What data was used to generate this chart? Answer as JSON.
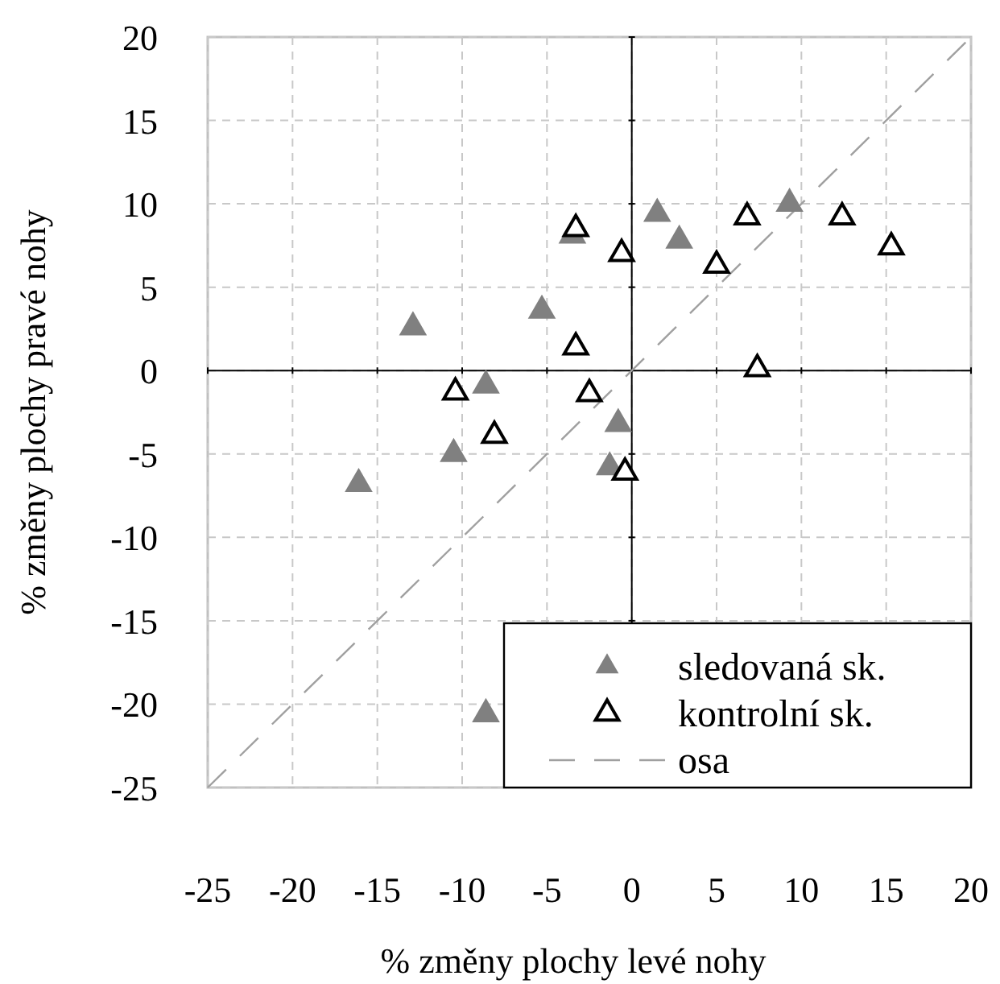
{
  "chart_data": {
    "type": "scatter",
    "xlabel": "% změny plochy levé nohy",
    "ylabel": "% změny plochy pravé nohy",
    "xlim": [
      -25,
      20
    ],
    "ylim": [
      -25,
      20
    ],
    "xticks": [
      -25,
      -20,
      -15,
      -10,
      -5,
      0,
      5,
      10,
      15,
      20
    ],
    "yticks": [
      -25,
      -20,
      -15,
      -10,
      -5,
      0,
      5,
      10,
      15,
      20
    ],
    "grid": true,
    "legend": "bottom right",
    "marker": "triangle",
    "series": [
      {
        "name": "sledovaná sk.",
        "color": "#808080",
        "x": [
          -12.9,
          -5.3,
          -3.5,
          1.5,
          2.8,
          9.3,
          -8.6,
          -0.8,
          -10.5,
          -1.3,
          -16.1,
          -8.6
        ],
        "values": [
          2.6,
          3.6,
          8.1,
          9.4,
          7.8,
          10.0,
          -0.9,
          -3.2,
          -5.0,
          -5.8,
          -6.8,
          -20.6
        ]
      },
      {
        "name": "kontrolní sk.",
        "color": "#000000",
        "x": [
          -3.3,
          -0.6,
          5.0,
          6.8,
          12.4,
          15.3,
          -3.3,
          7.4,
          -10.4,
          -2.5,
          -8.1,
          -0.4
        ],
        "values": [
          8.5,
          7.0,
          6.3,
          9.2,
          9.2,
          7.4,
          1.4,
          0.1,
          -1.3,
          -1.4,
          -3.9,
          -6.1
        ]
      },
      {
        "name": "osa",
        "type": "line",
        "color": "#a0a0a0",
        "line_style": "dashed",
        "marker": "none",
        "x": [
          -25,
          20
        ],
        "values": [
          -25,
          20
        ]
      }
    ]
  }
}
